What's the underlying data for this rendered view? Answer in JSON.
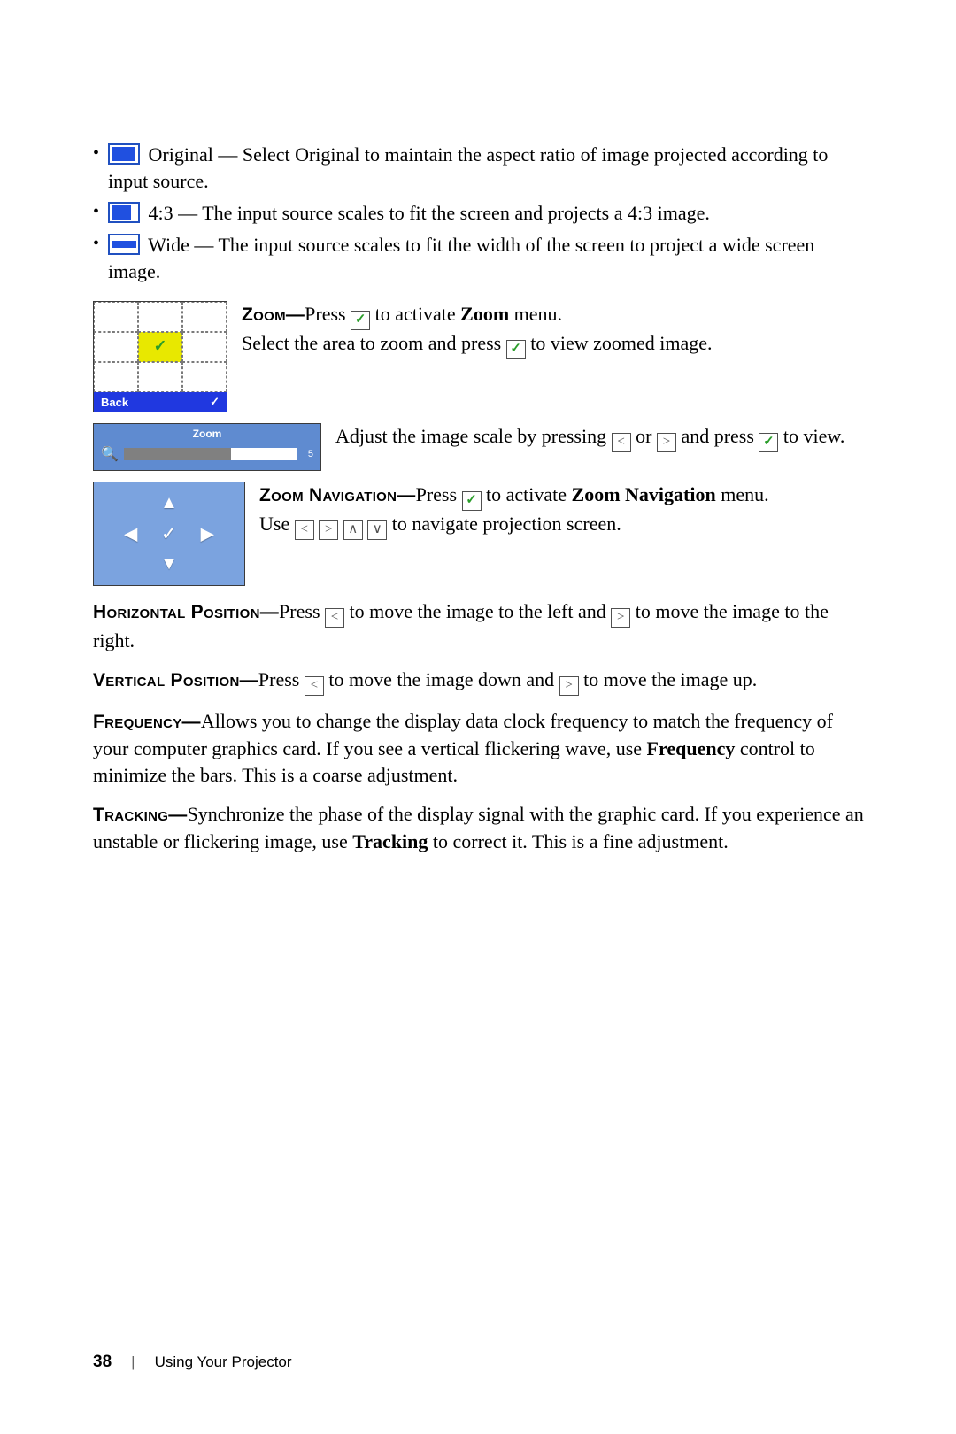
{
  "bullets": {
    "original": "Original — Select Original to maintain the aspect ratio of image projected according to input source.",
    "ratio43": "4:3 — The input source scales to fit the screen and projects a 4:3 image.",
    "wide": "Wide — The input source scales to fit the width of the screen to project a wide screen image."
  },
  "zoom": {
    "heading": "Zoom—",
    "line1a": "Press ",
    "line1b": " to activate ",
    "line1c": " menu.",
    "bold1": "Zoom",
    "line2a": "Select the area to zoom and press ",
    "line2b": " to view zoomed image.",
    "grid_back": "Back",
    "slider_title": "Zoom",
    "slider_value": "5",
    "slider_fill_pct": 62,
    "adj_a": "Adjust the image scale by pressing ",
    "adj_or": " or ",
    "adj_b": " and press ",
    "adj_c": " to view."
  },
  "nav": {
    "heading": "Zoom Navigation—",
    "a": "Press ",
    "b": " to activate ",
    "bold": "Zoom Navigation",
    "c": " menu.",
    "use": "Use ",
    "end": " to navigate projection screen."
  },
  "hpos": {
    "heading": "Horizontal Position—",
    "a": "Press ",
    "b": " to move the image to the left and ",
    "c": " to move the image to the right."
  },
  "vpos": {
    "heading": "Vertical Position—",
    "a": "Press ",
    "b": " to move the image down and ",
    "c": " to move the image up."
  },
  "freq": {
    "heading": "Frequency—",
    "a": "Allows you to change the display data clock frequency to match the frequency of your computer graphics card. If you see a vertical flickering wave, use ",
    "bold": "Frequency",
    "b": " control to minimize the bars. This is a coarse adjustment."
  },
  "track": {
    "heading": "Tracking—",
    "a": "Synchronize the phase of the display signal with the graphic card. If you experience an unstable or flickering image, use ",
    "bold": "Tracking",
    "b": " to correct it. This is a fine adjustment."
  },
  "footer": {
    "page": "38",
    "title": "Using Your Projector"
  },
  "colors": {
    "fig_bg": "#7ba3df",
    "grid_bg": "#9bbce8",
    "slider_bg": "#5f8bd0",
    "accent_blue": "#2038e0",
    "icon_blue": "#2050e0",
    "highlight_yellow": "#e8e800",
    "check_green": "#2a9d2a"
  }
}
